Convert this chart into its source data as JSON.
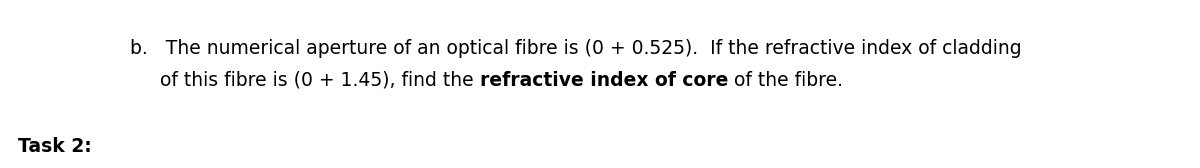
{
  "background_color": "#ffffff",
  "figsize": [
    12.0,
    1.68
  ],
  "dpi": 100,
  "line1": "b.   The numerical aperture of an optical fibre is (0 + 0.525).  If the refractive index of cladding",
  "line2_part1": "of this fibre is (0 + 1.45), find the ",
  "line2_bold": "refractive index of core",
  "line2_part2": " of the fibre.",
  "task_label": "Task 2:",
  "font_size": 13.5,
  "text_color": "#000000"
}
